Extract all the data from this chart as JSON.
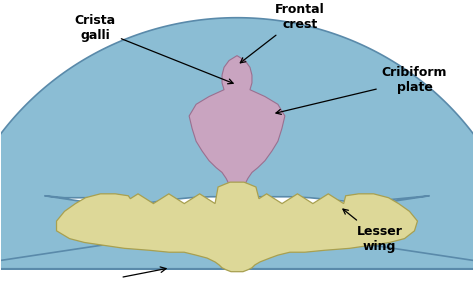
{
  "bg_color": "#ffffff",
  "frontal_bone_color": "#8bbdd4",
  "frontal_bone_edge": "#5a8aaa",
  "ethmoid_color": "#c9a4c0",
  "ethmoid_edge": "#9a7090",
  "sphenoid_color": "#ddd898",
  "sphenoid_edge": "#a8a050",
  "outline_color": "#4a6a7a",
  "labels": {
    "crista_galli": "Crista\ngalli",
    "frontal_crest": "Frontal\ncrest",
    "cribiform_plate": "Cribiform\nplate",
    "lesser_wing": "Lesser\nwing"
  },
  "label_fontsize": 9,
  "figsize": [
    4.74,
    2.86
  ],
  "dpi": 100
}
